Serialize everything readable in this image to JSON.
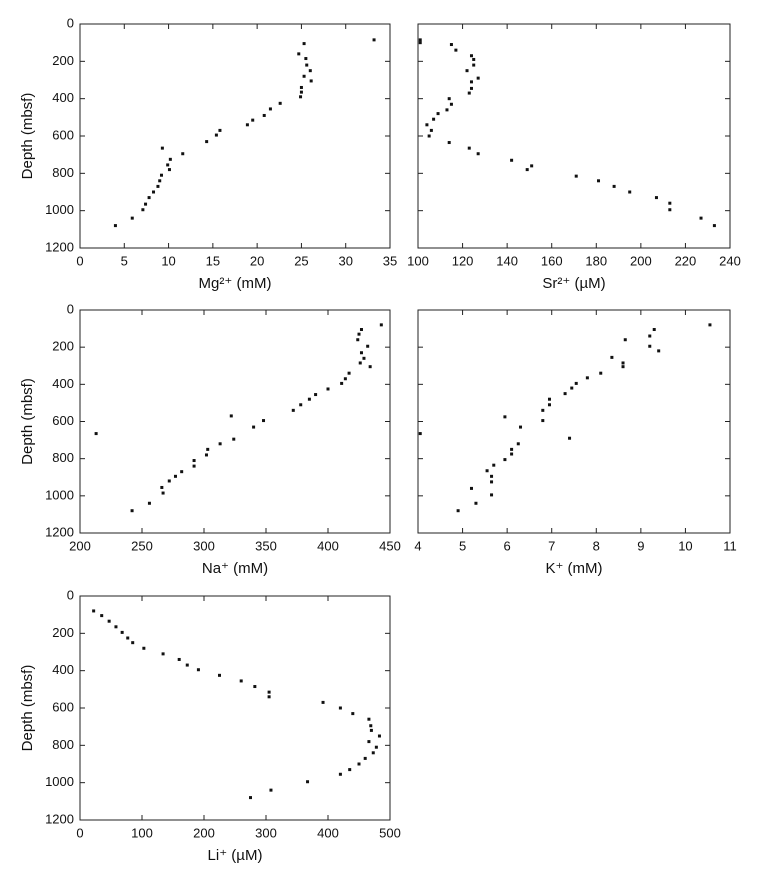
{
  "chart_data": [
    {
      "type": "scatter",
      "xlabel": "Mg²⁺ (mM)",
      "ylabel": "Depth (mbsf)",
      "color": "#111",
      "x": [
        33.2,
        25.3,
        24.7,
        25.5,
        25.6,
        26.0,
        25.3,
        26.1,
        25.0,
        25.0,
        24.9,
        22.6,
        21.5,
        20.8,
        19.5,
        18.9,
        15.8,
        15.4,
        14.3,
        9.3,
        11.6,
        10.2,
        9.9,
        10.1,
        9.2,
        9.0,
        8.8,
        8.3,
        7.8,
        7.4,
        7.1,
        5.9,
        4.0
      ],
      "y": [
        85,
        105,
        160,
        185,
        220,
        250,
        280,
        305,
        340,
        365,
        390,
        425,
        455,
        490,
        515,
        540,
        570,
        595,
        630,
        665,
        695,
        725,
        755,
        780,
        810,
        840,
        870,
        900,
        930,
        965,
        995,
        1040,
        1080
      ],
      "xlim": [
        0,
        35
      ],
      "xticks": [
        0,
        5,
        10,
        15,
        20,
        25,
        30,
        35
      ],
      "ylim": [
        1200,
        0
      ],
      "yticks": [
        0,
        200,
        400,
        600,
        800,
        1000,
        1200
      ]
    },
    {
      "type": "scatter",
      "xlabel": "Sr²⁺ (µM)",
      "color": "#111",
      "show_ytick_labels": false,
      "x": [
        101,
        101,
        115,
        117,
        124,
        125,
        125,
        122,
        127,
        124,
        124,
        123,
        114,
        115,
        113,
        109,
        107,
        104,
        106,
        105,
        114,
        123,
        127,
        142,
        151,
        149,
        171,
        181,
        188,
        195,
        207,
        213,
        213,
        227,
        233
      ],
      "y": [
        85,
        100,
        110,
        140,
        170,
        190,
        220,
        250,
        290,
        310,
        345,
        370,
        400,
        430,
        460,
        480,
        510,
        540,
        570,
        600,
        635,
        665,
        695,
        730,
        760,
        780,
        815,
        840,
        870,
        900,
        930,
        960,
        995,
        1040,
        1080
      ],
      "xlim": [
        100,
        240
      ],
      "xticks": [
        100,
        120,
        140,
        160,
        180,
        200,
        220,
        240
      ],
      "ylim": [
        1200,
        0
      ],
      "yticks": [
        0,
        200,
        400,
        600,
        800,
        1000,
        1200
      ]
    },
    {
      "type": "scatter",
      "xlabel": "Na⁺ (mM)",
      "ylabel": "Depth (mbsf)",
      "color": "#111",
      "x": [
        443,
        427,
        425,
        424,
        432,
        427,
        429,
        426,
        434,
        417,
        414,
        411,
        400,
        390,
        385,
        378,
        372,
        322,
        348,
        340,
        213,
        324,
        313,
        303,
        302,
        292,
        292,
        282,
        277,
        272,
        266,
        267,
        256,
        242
      ],
      "y": [
        80,
        105,
        130,
        160,
        195,
        230,
        260,
        285,
        305,
        340,
        370,
        395,
        425,
        455,
        480,
        510,
        540,
        570,
        595,
        630,
        665,
        695,
        720,
        750,
        780,
        810,
        840,
        870,
        895,
        920,
        955,
        985,
        1040,
        1080
      ],
      "xlim": [
        200,
        450
      ],
      "xticks": [
        200,
        250,
        300,
        350,
        400,
        450
      ],
      "ylim": [
        1200,
        0
      ],
      "yticks": [
        0,
        200,
        400,
        600,
        800,
        1000,
        1200
      ]
    },
    {
      "type": "scatter",
      "xlabel": "K⁺ (mM)",
      "color": "#111",
      "show_ytick_labels": false,
      "x": [
        10.55,
        9.3,
        9.2,
        8.65,
        9.2,
        9.4,
        8.35,
        8.6,
        8.6,
        8.1,
        7.8,
        7.55,
        7.45,
        7.3,
        6.95,
        6.95,
        6.8,
        5.95,
        6.8,
        6.3,
        4.05,
        7.4,
        6.25,
        6.1,
        6.1,
        5.95,
        5.7,
        5.55,
        5.65,
        5.65,
        5.2,
        5.65,
        5.3,
        4.9
      ],
      "y": [
        80,
        105,
        140,
        160,
        195,
        220,
        255,
        285,
        305,
        340,
        365,
        395,
        420,
        450,
        480,
        510,
        540,
        575,
        595,
        630,
        665,
        690,
        720,
        750,
        775,
        805,
        835,
        865,
        895,
        925,
        960,
        995,
        1040,
        1080
      ],
      "xlim": [
        4,
        11
      ],
      "xticks": [
        4,
        5,
        6,
        7,
        8,
        9,
        10,
        11
      ],
      "ylim": [
        1200,
        0
      ],
      "yticks": [
        0,
        200,
        400,
        600,
        800,
        1000,
        1200
      ]
    },
    {
      "type": "scatter",
      "xlabel": "Li⁺ (µM)",
      "ylabel": "Depth (mbsf)",
      "color": "#111",
      "x": [
        22,
        35,
        47,
        58,
        68,
        77,
        85,
        103,
        134,
        160,
        173,
        191,
        225,
        260,
        282,
        305,
        305,
        392,
        420,
        440,
        466,
        469,
        470,
        483,
        466,
        478,
        473,
        460,
        450,
        435,
        420,
        367,
        308,
        275
      ],
      "y": [
        80,
        105,
        135,
        165,
        195,
        225,
        250,
        280,
        310,
        340,
        370,
        395,
        425,
        455,
        485,
        515,
        540,
        570,
        600,
        630,
        660,
        695,
        720,
        750,
        780,
        810,
        840,
        870,
        900,
        930,
        955,
        995,
        1040,
        1080
      ],
      "xlim": [
        0,
        500
      ],
      "xticks": [
        0,
        100,
        200,
        300,
        400,
        500
      ],
      "ylim": [
        1200,
        0
      ],
      "yticks": [
        0,
        200,
        400,
        600,
        800,
        1000,
        1200
      ]
    }
  ]
}
